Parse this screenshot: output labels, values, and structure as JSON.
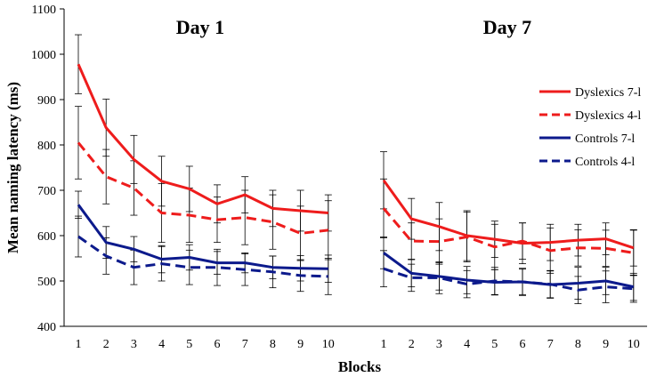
{
  "chart_data": {
    "type": "line",
    "ylabel": "Mean naming latency (ms)",
    "xlabel": "Blocks",
    "ylim": [
      400,
      1100
    ],
    "yticks": [
      400,
      500,
      600,
      700,
      800,
      900,
      1000,
      1100
    ],
    "x": [
      1,
      2,
      3,
      4,
      5,
      6,
      7,
      8,
      9,
      10
    ],
    "legend_position": "right",
    "colors": {
      "red": "#ee1c1c",
      "blue": "#0c1a8c",
      "error_bar": "#000000"
    },
    "panels": [
      {
        "title": "Day 1",
        "series": [
          {
            "name": "Dyslexics 7-l",
            "color": "red",
            "dashed": false,
            "values": [
              978,
              838,
              768,
              720,
              703,
              670,
              690,
              660,
              655,
              650
            ],
            "errors": [
              65,
              63,
              53,
              55,
              50,
              42,
              40,
              40,
              45,
              40
            ]
          },
          {
            "name": "Dyslexics 4-l",
            "color": "red",
            "dashed": true,
            "values": [
              805,
              730,
              705,
              650,
              645,
              635,
              640,
              630,
              605,
              612
            ],
            "errors": [
              80,
              60,
              60,
              65,
              60,
              50,
              60,
              60,
              60,
              65
            ]
          },
          {
            "name": "Controls 7-l",
            "color": "blue",
            "dashed": false,
            "values": [
              668,
              585,
              570,
              548,
              552,
              540,
              540,
              530,
              528,
              527
            ],
            "errors": [
              30,
              35,
              28,
              30,
              28,
              25,
              22,
              25,
              28,
              30
            ]
          },
          {
            "name": "Controls 4-l",
            "color": "blue",
            "dashed": true,
            "values": [
              598,
              555,
              530,
              538,
              530,
              530,
              525,
              520,
              512,
              510
            ],
            "errors": [
              45,
              40,
              38,
              38,
              38,
              40,
              35,
              35,
              35,
              40
            ]
          }
        ]
      },
      {
        "title": "Day 7",
        "series": [
          {
            "name": "Dyslexics 7-l",
            "color": "red",
            "dashed": false,
            "values": [
              722,
              637,
              620,
              600,
              592,
              583,
              585,
              590,
              593,
              573
            ],
            "errors": [
              63,
              45,
              53,
              55,
              40,
              45,
              40,
              35,
              35,
              40
            ]
          },
          {
            "name": "Dyslexics 4-l",
            "color": "red",
            "dashed": true,
            "values": [
              660,
              588,
              587,
              597,
              575,
              588,
              567,
              573,
              572,
              562
            ],
            "errors": [
              65,
              40,
              50,
              55,
              50,
              40,
              50,
              40,
              40,
              50
            ]
          },
          {
            "name": "Controls 7-l",
            "color": "blue",
            "dashed": false,
            "values": [
              562,
              517,
              510,
              502,
              497,
              498,
              492,
              495,
              500,
              487
            ],
            "errors": [
              35,
              30,
              30,
              30,
              28,
              28,
              30,
              35,
              30,
              30
            ]
          },
          {
            "name": "Controls 4-l",
            "color": "blue",
            "dashed": true,
            "values": [
              527,
              507,
              507,
              493,
              500,
              498,
              493,
              480,
              487,
              483
            ],
            "errors": [
              40,
              30,
              35,
              30,
              30,
              30,
              30,
              30,
              35,
              30
            ]
          }
        ]
      }
    ]
  }
}
